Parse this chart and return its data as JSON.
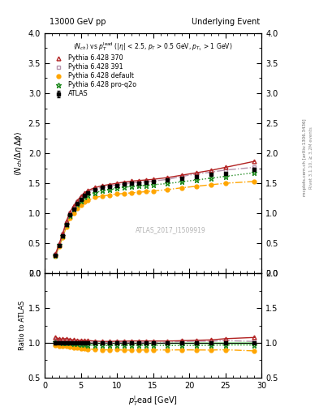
{
  "title_left": "13000 GeV pp",
  "title_right": "Underlying Event",
  "ylabel_main": "<N_{ch}/ \\Delta\\eta \\Delta\\phi>",
  "ylabel_ratio": "Ratio to ATLAS",
  "xlabel": "p$_T^l$ead [GeV]",
  "annotation": "ATLAS_2017_I1509919",
  "subtitle": "<N_{ch}> vs p_{T}^{lead} (|eta| < 2.5, p_T > 0.5 GeV, p_{T_1} > 1 GeV)",
  "right_label1": "mcplots.cern.ch [arXiv:1306.3436]",
  "right_label2": "Rivet 3.1.10, >= 3.2M events",
  "xlim": [
    0,
    30
  ],
  "ylim_main": [
    0,
    4
  ],
  "ylim_ratio": [
    0.5,
    2
  ],
  "yticks_main": [
    0,
    0.5,
    1.0,
    1.5,
    2.0,
    2.5,
    3.0,
    3.5,
    4.0
  ],
  "yticks_ratio": [
    0.5,
    1.0,
    1.5,
    2.0
  ],
  "xticks": [
    0,
    5,
    10,
    15,
    20,
    25,
    30
  ],
  "atlas_x": [
    1.5,
    2.0,
    2.5,
    3.0,
    3.5,
    4.0,
    4.5,
    5.0,
    5.5,
    6.0,
    7.0,
    8.0,
    9.0,
    10.0,
    11.0,
    12.0,
    13.0,
    14.0,
    15.0,
    17.0,
    19.0,
    21.0,
    23.0,
    25.0,
    29.0
  ],
  "atlas_y": [
    0.295,
    0.465,
    0.625,
    0.815,
    0.97,
    1.075,
    1.165,
    1.235,
    1.295,
    1.335,
    1.395,
    1.43,
    1.45,
    1.465,
    1.485,
    1.495,
    1.505,
    1.515,
    1.525,
    1.555,
    1.585,
    1.615,
    1.645,
    1.665,
    1.73
  ],
  "atlas_yerr": [
    0.008,
    0.008,
    0.008,
    0.008,
    0.008,
    0.008,
    0.008,
    0.008,
    0.008,
    0.008,
    0.008,
    0.008,
    0.008,
    0.008,
    0.008,
    0.008,
    0.008,
    0.008,
    0.008,
    0.012,
    0.012,
    0.015,
    0.015,
    0.018,
    0.025
  ],
  "py370_x": [
    1.5,
    2.0,
    2.5,
    3.0,
    3.5,
    4.0,
    4.5,
    5.0,
    5.5,
    6.0,
    7.0,
    8.0,
    9.0,
    10.0,
    11.0,
    12.0,
    13.0,
    14.0,
    15.0,
    17.0,
    19.0,
    21.0,
    23.0,
    25.0,
    29.0
  ],
  "py370_y": [
    0.32,
    0.49,
    0.66,
    0.865,
    1.02,
    1.12,
    1.21,
    1.28,
    1.34,
    1.38,
    1.43,
    1.46,
    1.48,
    1.5,
    1.52,
    1.535,
    1.545,
    1.555,
    1.565,
    1.595,
    1.635,
    1.675,
    1.715,
    1.765,
    1.865
  ],
  "py370_color": "#b22222",
  "py370_label": "Pythia 6.428 370",
  "py391_x": [
    1.5,
    2.0,
    2.5,
    3.0,
    3.5,
    4.0,
    4.5,
    5.0,
    5.5,
    6.0,
    7.0,
    8.0,
    9.0,
    10.0,
    11.0,
    12.0,
    13.0,
    14.0,
    15.0,
    17.0,
    19.0,
    21.0,
    23.0,
    25.0,
    29.0
  ],
  "py391_y": [
    0.31,
    0.48,
    0.645,
    0.84,
    0.995,
    1.1,
    1.19,
    1.255,
    1.315,
    1.355,
    1.405,
    1.435,
    1.455,
    1.475,
    1.495,
    1.505,
    1.515,
    1.525,
    1.535,
    1.565,
    1.615,
    1.655,
    1.685,
    1.72,
    1.765
  ],
  "py391_color": "#aa82a0",
  "py391_label": "Pythia 6.428 391",
  "pydef_x": [
    1.5,
    2.0,
    2.5,
    3.0,
    3.5,
    4.0,
    4.5,
    5.0,
    5.5,
    6.0,
    7.0,
    8.0,
    9.0,
    10.0,
    11.0,
    12.0,
    13.0,
    14.0,
    15.0,
    17.0,
    19.0,
    21.0,
    23.0,
    25.0,
    29.0
  ],
  "pydef_y": [
    0.285,
    0.445,
    0.595,
    0.775,
    0.915,
    1.005,
    1.08,
    1.135,
    1.185,
    1.215,
    1.265,
    1.285,
    1.305,
    1.32,
    1.33,
    1.34,
    1.35,
    1.36,
    1.37,
    1.395,
    1.425,
    1.45,
    1.475,
    1.5,
    1.53
  ],
  "pydef_color": "#ffa500",
  "pydef_label": "Pythia 6.428 default",
  "pyq2o_x": [
    1.5,
    2.0,
    2.5,
    3.0,
    3.5,
    4.0,
    4.5,
    5.0,
    5.5,
    6.0,
    7.0,
    8.0,
    9.0,
    10.0,
    11.0,
    12.0,
    13.0,
    14.0,
    15.0,
    17.0,
    19.0,
    21.0,
    23.0,
    25.0,
    29.0
  ],
  "pyq2o_y": [
    0.3,
    0.47,
    0.625,
    0.815,
    0.965,
    1.065,
    1.145,
    1.205,
    1.265,
    1.295,
    1.345,
    1.375,
    1.395,
    1.415,
    1.435,
    1.445,
    1.455,
    1.465,
    1.475,
    1.495,
    1.525,
    1.555,
    1.585,
    1.615,
    1.675
  ],
  "pyq2o_color": "#228b22",
  "pyq2o_label": "Pythia 6.428 pro-q2o",
  "atlas_color": "#000000",
  "atlas_band_color": "#90ee90"
}
